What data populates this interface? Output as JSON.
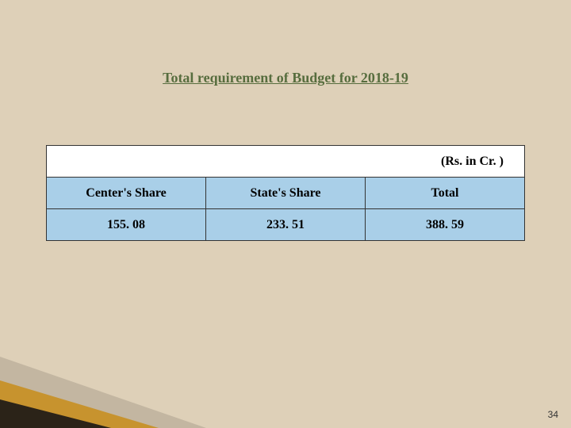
{
  "title": "Total requirement of Budget for  2018-19",
  "unit_label": "(Rs. in Cr. )",
  "table": {
    "columns": [
      "Center's Share",
      "State's Share",
      "Total"
    ],
    "rows": [
      [
        "155. 08",
        "233. 51",
        "388. 59"
      ]
    ],
    "header_bg": "#a9cfe8",
    "cell_bg": "#ffffff",
    "border_color": "#333333",
    "font_family": "Times New Roman",
    "header_font_weight": "bold",
    "cell_fontsize": 16
  },
  "background_color": "#ded0b8",
  "title_color": "#576d3e",
  "title_fontsize": 18,
  "page_number": "34",
  "decor": {
    "wedge_shadow_color": "rgba(0,0,0,0.12)",
    "wedge_gold_color": "#c7932e",
    "wedge_dark_color": "#2b2318"
  }
}
